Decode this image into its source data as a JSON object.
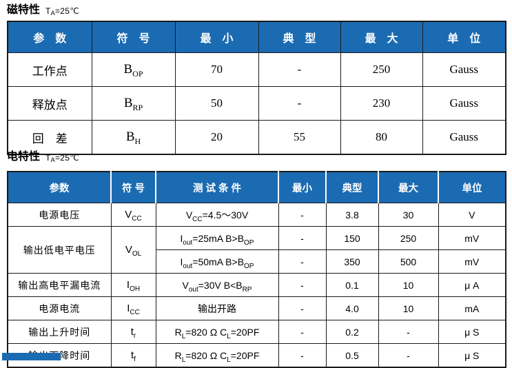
{
  "colors": {
    "header-bg": "#1b6bb2"
  },
  "magnetic": {
    "title": "磁特性",
    "condition": [
      [
        "t",
        "T"
      ],
      [
        "s",
        "A"
      ],
      [
        "t",
        "=25℃"
      ]
    ],
    "columns": [
      "参　数",
      "符　号",
      "最　小",
      "典　型",
      "最　大",
      "单　位"
    ],
    "rows": [
      {
        "param": "工作点",
        "symbol": [
          [
            "t",
            "B"
          ],
          [
            "s",
            "OP"
          ]
        ],
        "min": "70",
        "typ": "-",
        "max": "250",
        "unit": "Gauss"
      },
      {
        "param": "释放点",
        "symbol": [
          [
            "t",
            "B"
          ],
          [
            "s",
            "RP"
          ]
        ],
        "min": "50",
        "typ": "-",
        "max": "230",
        "unit": "Gauss"
      },
      {
        "param": "回　差",
        "symbol": [
          [
            "t",
            "B"
          ],
          [
            "s",
            "H"
          ]
        ],
        "min": "20",
        "typ": "55",
        "max": "80",
        "unit": "Gauss"
      }
    ]
  },
  "electrical": {
    "title": "电特性",
    "condition": [
      [
        "t",
        "T"
      ],
      [
        "s",
        "A"
      ],
      [
        "t",
        "=25℃"
      ]
    ],
    "columns": [
      "参数",
      "符 号",
      "测 试 条 件",
      "最小",
      "典型",
      "最大",
      "单位"
    ],
    "rows": [
      {
        "param": "电源电压",
        "symbol": [
          [
            "t",
            "V"
          ],
          [
            "s",
            "CC"
          ]
        ],
        "cond": [
          [
            "t",
            "V"
          ],
          [
            "s",
            "CC"
          ],
          [
            "t",
            "=4.5～30V"
          ]
        ],
        "min": "-",
        "typ": "3.8",
        "max": "30",
        "unit": "V"
      },
      {
        "param": "输出低电平电压",
        "symbol": [
          [
            "t",
            "V"
          ],
          [
            "s",
            "OL"
          ]
        ],
        "cond": [
          [
            "t",
            "I"
          ],
          [
            "s",
            "out"
          ],
          [
            "t",
            "=25mA B>B"
          ],
          [
            "s",
            "OP"
          ]
        ],
        "min": "-",
        "typ": "150",
        "max": "250",
        "unit": "mV"
      },
      {
        "cond": [
          [
            "t",
            "I"
          ],
          [
            "s",
            "out"
          ],
          [
            "t",
            "=50mA B>B"
          ],
          [
            "s",
            "OP"
          ]
        ],
        "min": "-",
        "typ": "350",
        "max": "500",
        "unit": "mV"
      },
      {
        "param": "输出高电平漏电流",
        "symbol": [
          [
            "t",
            "I"
          ],
          [
            "s",
            "OH"
          ]
        ],
        "cond": [
          [
            "t",
            "V"
          ],
          [
            "s",
            "out"
          ],
          [
            "t",
            "=30V B<B"
          ],
          [
            "s",
            "RP"
          ]
        ],
        "min": "-",
        "typ": "0.1",
        "max": "10",
        "unit": "μ A"
      },
      {
        "param": "电源电流",
        "symbol": [
          [
            "t",
            "I"
          ],
          [
            "s",
            "CC"
          ]
        ],
        "cond": [
          [
            "t",
            "输出开路"
          ]
        ],
        "min": "-",
        "typ": "4.0",
        "max": "10",
        "unit": "mA"
      },
      {
        "param": "输出上升时间",
        "symbol": [
          [
            "t",
            "t"
          ],
          [
            "s",
            "r"
          ]
        ],
        "cond": [
          [
            "t",
            "R"
          ],
          [
            "s",
            "L"
          ],
          [
            "t",
            "=820 Ω  C"
          ],
          [
            "s",
            "L"
          ],
          [
            "t",
            "=20PF"
          ]
        ],
        "min": "-",
        "typ": "0.2",
        "max": "-",
        "unit": "μ S"
      },
      {
        "param": "输出下降时间",
        "symbol": [
          [
            "t",
            "t"
          ],
          [
            "s",
            "f"
          ]
        ],
        "cond": [
          [
            "t",
            "R"
          ],
          [
            "s",
            "L"
          ],
          [
            "t",
            "=820 Ω  C"
          ],
          [
            "s",
            "L"
          ],
          [
            "t",
            "=20PF"
          ]
        ],
        "min": "-",
        "typ": "0.5",
        "max": "-",
        "unit": "μ S"
      }
    ]
  }
}
